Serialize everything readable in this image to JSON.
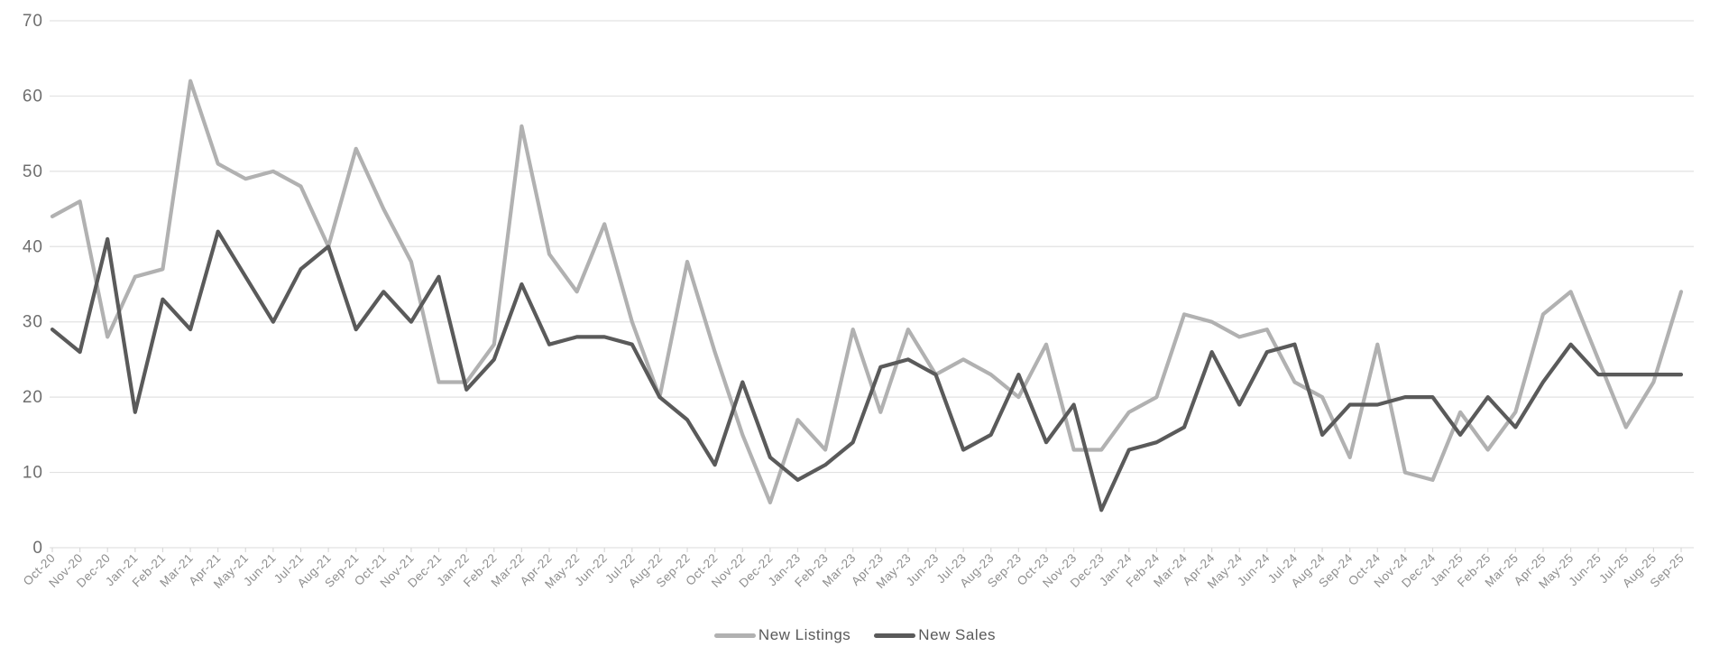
{
  "chart_data": {
    "type": "line",
    "title": "",
    "xlabel": "",
    "ylabel": "",
    "ylim": [
      0,
      70
    ],
    "yticks": [
      0,
      10,
      20,
      30,
      40,
      50,
      60,
      70
    ],
    "grid": "horizontal",
    "legend_position": "bottom-center",
    "background_color": "#ffffff",
    "gridline_color": "#e2e2e2",
    "tick_color": "#d8d8d8",
    "ytick_label_color": "#6e6e6e",
    "xtick_label_color": "#8e8e8e",
    "legend_text_color": "#595959",
    "x": [
      "Oct-20",
      "Nov-20",
      "Dec-20",
      "Jan-21",
      "Feb-21",
      "Mar-21",
      "Apr-21",
      "May-21",
      "Jun-21",
      "Jul-21",
      "Aug-21",
      "Sep-21",
      "Oct-21",
      "Nov-21",
      "Dec-21",
      "Jan-22",
      "Feb-22",
      "Mar-22",
      "Apr-22",
      "May-22",
      "Jun-22",
      "Jul-22",
      "Aug-22",
      "Sep-22",
      "Oct-22",
      "Nov-22",
      "Dec-22",
      "Jan-23",
      "Feb-23",
      "Mar-23",
      "Apr-23",
      "May-23",
      "Jun-23",
      "Jul-23",
      "Aug-23",
      "Sep-23",
      "Oct-23",
      "Nov-23",
      "Dec-23",
      "Jan-24",
      "Feb-24",
      "Mar-24",
      "Apr-24",
      "May-24",
      "Jun-24",
      "Jul-24",
      "Aug-24",
      "Sep-24",
      "Oct-24",
      "Nov-24",
      "Dec-24",
      "Jan-25",
      "Feb-25",
      "Mar-25",
      "Apr-25",
      "May-25",
      "Jun-25",
      "Jul-25",
      "Aug-25",
      "Sep-25"
    ],
    "series": [
      {
        "name": "New Listings",
        "color": "#b1b1b1",
        "values": [
          44,
          46,
          28,
          36,
          37,
          62,
          51,
          49,
          50,
          48,
          40,
          53,
          45,
          38,
          22,
          22,
          27,
          56,
          39,
          34,
          43,
          30,
          20,
          38,
          26,
          15,
          6,
          17,
          13,
          29,
          18,
          29,
          23,
          25,
          23,
          20,
          27,
          13,
          13,
          18,
          20,
          31,
          30,
          28,
          29,
          22,
          20,
          12,
          27,
          10,
          9,
          18,
          13,
          18,
          31,
          34,
          25,
          16,
          22,
          34
        ]
      },
      {
        "name": "New Sales",
        "color": "#5a5a5a",
        "values": [
          29,
          26,
          41,
          18,
          33,
          29,
          42,
          36,
          30,
          37,
          40,
          29,
          34,
          30,
          36,
          21,
          25,
          35,
          27,
          28,
          28,
          27,
          20,
          17,
          11,
          22,
          12,
          9,
          11,
          14,
          24,
          25,
          23,
          13,
          15,
          23,
          14,
          19,
          5,
          13,
          14,
          16,
          26,
          19,
          26,
          27,
          15,
          19,
          19,
          20,
          20,
          15,
          20,
          16,
          22,
          27,
          23,
          23,
          23,
          23
        ]
      }
    ]
  }
}
